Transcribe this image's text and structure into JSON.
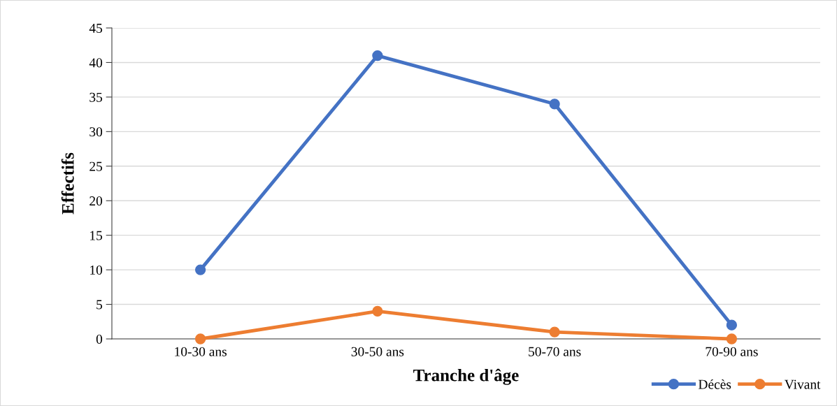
{
  "chart_data": {
    "type": "line",
    "xlabel": "Tranche d'âge",
    "ylabel": "Effectifs",
    "categories": [
      "10-30 ans",
      "30-50 ans",
      "50-70 ans",
      "70-90 ans"
    ],
    "series": [
      {
        "name": "Décès",
        "color": "#4472c4",
        "values": [
          10,
          41,
          34,
          2
        ]
      },
      {
        "name": "Vivant",
        "color": "#ed7d31",
        "values": [
          0,
          4,
          1,
          0
        ]
      }
    ],
    "ylim": [
      0,
      45
    ],
    "yticks": [
      0,
      5,
      10,
      15,
      20,
      25,
      30,
      35,
      40,
      45
    ],
    "grid": "y",
    "legend": "bottom right",
    "marker": "circle",
    "line_style": "solid"
  }
}
